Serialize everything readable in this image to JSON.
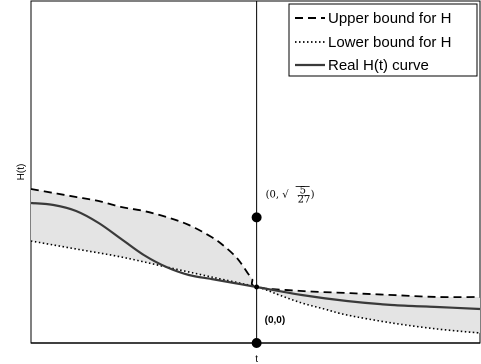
{
  "chart_data": {
    "type": "line",
    "xlabel": "t",
    "ylabel": "H(t)",
    "xlim": [
      -1.0,
      0.99
    ],
    "ylim": [
      -0.28,
      1.43
    ],
    "grid": false,
    "legend": "top-right",
    "legend_entries": [
      {
        "series": "upper",
        "label": "Upper bound for H"
      },
      {
        "series": "lower",
        "label": "Lower bound for H"
      },
      {
        "series": "real",
        "label": "Real H(t) curve"
      }
    ],
    "series": [
      {
        "key": "upper",
        "style": "dashed",
        "x": [
          -1.0,
          -0.9,
          -0.8,
          -0.7,
          -0.6,
          -0.5,
          -0.4,
          -0.3,
          -0.2,
          -0.15,
          -0.1,
          -0.07,
          -0.04,
          -0.02,
          0.0,
          0.2,
          0.4,
          0.6,
          0.8,
          0.99
        ],
        "y": [
          0.49,
          0.47,
          0.45,
          0.43,
          0.4,
          0.38,
          0.35,
          0.31,
          0.25,
          0.21,
          0.16,
          0.12,
          0.07,
          0.04,
          0.0,
          -0.02,
          -0.03,
          -0.04,
          -0.05,
          -0.05
        ]
      },
      {
        "key": "lower",
        "style": "dotted",
        "x": [
          -1.0,
          -0.8,
          -0.6,
          -0.4,
          -0.2,
          0.0,
          0.1,
          0.2,
          0.3,
          0.4,
          0.6,
          0.8,
          0.99
        ],
        "y": [
          0.23,
          0.19,
          0.15,
          0.1,
          0.05,
          0.0,
          -0.04,
          -0.08,
          -0.11,
          -0.14,
          -0.18,
          -0.21,
          -0.23
        ]
      },
      {
        "key": "real",
        "style": "solid",
        "x": [
          -1.0,
          -0.9,
          -0.8,
          -0.7,
          -0.6,
          -0.5,
          -0.4,
          -0.3,
          -0.2,
          -0.1,
          0.0,
          0.2,
          0.4,
          0.6,
          0.8,
          0.99
        ],
        "y": [
          0.42,
          0.41,
          0.38,
          0.32,
          0.24,
          0.16,
          0.1,
          0.06,
          0.04,
          0.02,
          0.0,
          -0.04,
          -0.07,
          -0.09,
          -0.1,
          -0.11
        ]
      }
    ],
    "shaded_between": [
      "upper",
      "lower"
    ],
    "points": [
      {
        "x": 0.0,
        "y": 0.348,
        "label_main": "(0, √",
        "label_num": "5",
        "label_den": "27",
        "label_close": ")"
      },
      {
        "x": 0.0,
        "y": 0.0,
        "label": "(0,0)"
      },
      {
        "x": 0.0,
        "y": -0.28
      }
    ],
    "colors": {
      "fill": "#e4e4e4",
      "line": "#3a3a3a",
      "bound": "#000000"
    }
  }
}
